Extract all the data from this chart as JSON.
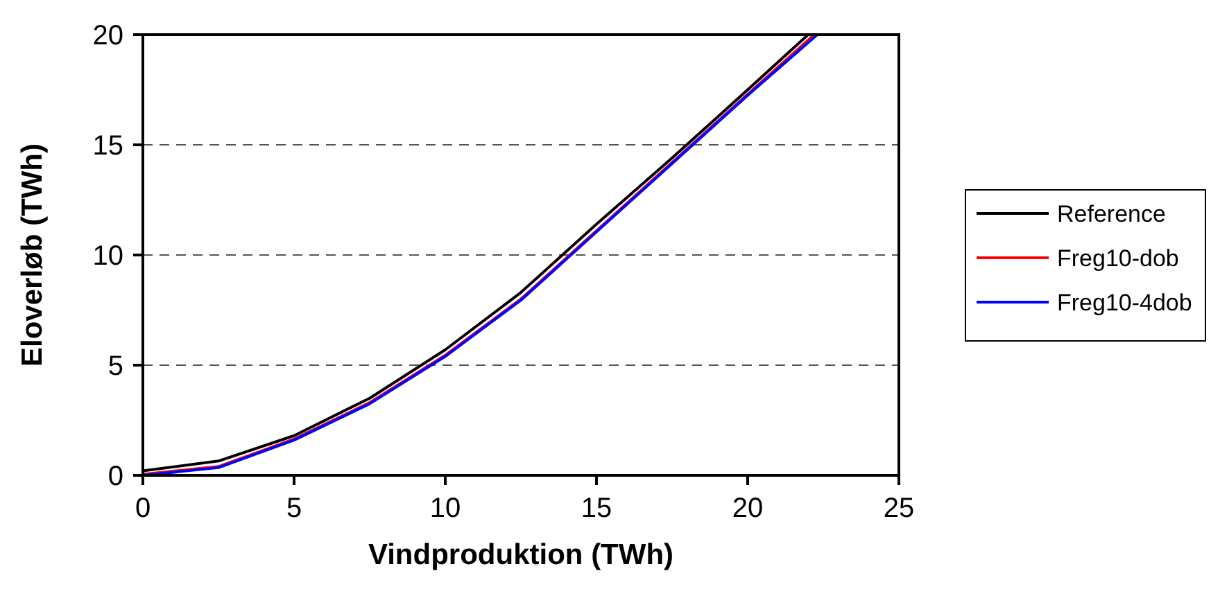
{
  "chart_data": {
    "type": "line",
    "xlabel": "Vindproduktion (TWh)",
    "ylabel": "Eloverløb (TWh)",
    "xlim": [
      0,
      25
    ],
    "xticks": [
      0,
      5,
      10,
      15,
      20,
      25
    ],
    "ylim": [
      0,
      20
    ],
    "yticks": [
      0,
      5,
      10,
      15,
      20
    ],
    "grid": "y",
    "legend": "right",
    "line_style": "solid",
    "marker": "none",
    "series": [
      {
        "name": "Reference",
        "color": "#000000",
        "x": [
          0,
          2.5,
          5,
          7.5,
          10,
          12.5,
          15,
          17.5,
          20,
          22
        ],
        "values": [
          0.2,
          0.65,
          1.8,
          3.5,
          5.7,
          8.3,
          11.4,
          14.4,
          17.5,
          20
        ]
      },
      {
        "name": "Freg10-dob",
        "color": "#ff0000",
        "x": [
          0,
          2.5,
          5,
          7.5,
          10,
          12.5,
          15,
          17.5,
          20,
          22.2
        ],
        "values": [
          0.05,
          0.4,
          1.65,
          3.3,
          5.45,
          8.0,
          11.1,
          14.2,
          17.3,
          20
        ]
      },
      {
        "name": "Freg10-4dob",
        "color": "#0000ff",
        "x": [
          0,
          2.5,
          5,
          7.5,
          10,
          12.5,
          15,
          17.5,
          20,
          22.3
        ],
        "values": [
          0,
          0.35,
          1.6,
          3.25,
          5.4,
          7.95,
          11.05,
          14.15,
          17.25,
          20
        ]
      }
    ]
  }
}
